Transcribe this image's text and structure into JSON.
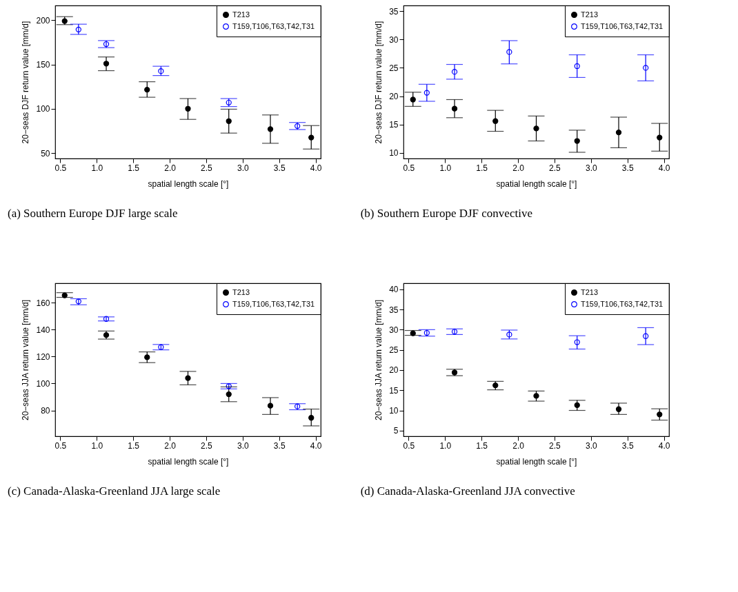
{
  "chart_data": [
    {
      "type": "scatter",
      "ylabel": "20−seas DJF return value [mm/d]",
      "xlabel": "spatial length scale [°]",
      "annotations": [
        "(a) Southern Europe DJF large scale"
      ],
      "xlim": [
        0.43,
        4.07
      ],
      "xticks": [
        0.5,
        {
          "value": 1,
          "label": "1.0"
        },
        1.5,
        {
          "value": 2,
          "label": "2.0"
        },
        2.5,
        {
          "value": 3,
          "label": "3.0"
        },
        3.5,
        {
          "value": 4,
          "label": "4.0"
        }
      ],
      "ylim": [
        43.8,
        216.6
      ],
      "yticks": [
        50,
        100,
        150,
        200
      ],
      "legend": "top right",
      "grid": false,
      "marker": "circle",
      "series": [
        {
          "name": "T213",
          "color": "#000000",
          "x": [
            0.56,
            1.13,
            1.69,
            2.25,
            2.81,
            3.38,
            3.94
          ],
          "values": [
            199,
            151,
            121.5,
            100,
            86,
            77,
            67.5
          ],
          "errors": [
            [
              195,
              204
            ],
            [
              143,
              158.5
            ],
            [
              113,
              130.5
            ],
            [
              88,
              111.5
            ],
            [
              72.5,
              99.5
            ],
            [
              61,
              93
            ],
            [
              54.5,
              81
            ]
          ]
        },
        {
          "name": "T159,T106,T63,T42,T31",
          "color": "#0000ff",
          "x": [
            0.75,
            1.13,
            1.88,
            2.81,
            3.75
          ],
          "values": [
            189.5,
            173,
            142.5,
            107,
            80.5
          ],
          "errors": [
            [
              184,
              195.5
            ],
            [
              169,
              177
            ],
            [
              137.5,
              148
            ],
            [
              102.5,
              111.5
            ],
            [
              76.5,
              84.5
            ]
          ]
        }
      ]
    },
    {
      "type": "scatter",
      "ylabel": "20−seas DJF return value [mm/d]",
      "xlabel": "spatial length scale [°]",
      "annotations": [
        "(b) Southern Europe DJF convective"
      ],
      "xlim": [
        0.43,
        4.07
      ],
      "xticks": [
        0.5,
        {
          "value": 1,
          "label": "1.0"
        },
        1.5,
        {
          "value": 2,
          "label": "2.0"
        },
        2.5,
        {
          "value": 3,
          "label": "3.0"
        },
        3.5,
        {
          "value": 4,
          "label": "4.0"
        }
      ],
      "ylim": [
        9.0,
        36.0
      ],
      "yticks": [
        10,
        15,
        20,
        25,
        30,
        35
      ],
      "legend": "top right",
      "grid": false,
      "marker": "circle",
      "series": [
        {
          "name": "T213",
          "color": "#000000",
          "x": [
            0.56,
            1.13,
            1.69,
            2.25,
            2.81,
            3.38,
            3.94
          ],
          "values": [
            19.4,
            17.8,
            15.6,
            14.3,
            12.1,
            13.6,
            12.7
          ],
          "errors": [
            [
              18.2,
              20.7
            ],
            [
              16.2,
              19.4
            ],
            [
              13.8,
              17.5
            ],
            [
              12.1,
              16.5
            ],
            [
              10.1,
              14.0
            ],
            [
              10.9,
              16.3
            ],
            [
              10.3,
              15.2
            ]
          ]
        },
        {
          "name": "T159,T106,T63,T42,T31",
          "color": "#0000ff",
          "x": [
            0.75,
            1.13,
            1.88,
            2.81,
            3.75
          ],
          "values": [
            20.6,
            24.3,
            27.8,
            25.3,
            25.0
          ],
          "errors": [
            [
              19.1,
              22.1
            ],
            [
              23.0,
              25.6
            ],
            [
              25.7,
              29.8
            ],
            [
              23.3,
              27.3
            ],
            [
              22.7,
              27.3
            ]
          ]
        }
      ]
    },
    {
      "type": "scatter",
      "ylabel": "20−seas JJA return value [mm/d]",
      "xlabel": "spatial length scale [°]",
      "annotations": [
        "(c) Canada-Alaska-Greenland JJA large scale"
      ],
      "xlim": [
        0.43,
        4.07
      ],
      "xticks": [
        0.5,
        {
          "value": 1,
          "label": "1.0"
        },
        1.5,
        {
          "value": 2,
          "label": "2.0"
        },
        2.5,
        {
          "value": 3,
          "label": "3.0"
        },
        3.5,
        {
          "value": 4,
          "label": "4.0"
        }
      ],
      "ylim": [
        60.8,
        174.5
      ],
      "yticks": [
        80,
        100,
        120,
        140,
        160
      ],
      "legend": "top right",
      "grid": false,
      "marker": "circle",
      "series": [
        {
          "name": "T213",
          "color": "#000000",
          "x": [
            0.56,
            1.13,
            1.69,
            2.25,
            2.81,
            3.38,
            3.94
          ],
          "values": [
            165.5,
            136,
            119.5,
            104,
            92,
            83.5,
            74.5
          ],
          "errors": [
            [
              164,
              167.5
            ],
            [
              133,
              139
            ],
            [
              115.5,
              123.5
            ],
            [
              99,
              109
            ],
            [
              86.5,
              97.5
            ],
            [
              77,
              89.5
            ],
            [
              68.5,
              81
            ]
          ]
        },
        {
          "name": "T159,T106,T63,T42,T31",
          "color": "#0000ff",
          "x": [
            0.75,
            1.13,
            1.88,
            2.81,
            3.75
          ],
          "values": [
            161,
            148,
            127,
            98,
            83
          ],
          "errors": [
            [
              158.5,
              163
            ],
            [
              146.5,
              149.5
            ],
            [
              125,
              129
            ],
            [
              96,
              100
            ],
            [
              80.5,
              85
            ]
          ]
        }
      ]
    },
    {
      "type": "scatter",
      "ylabel": "20−seas JJA return value [mm/d]",
      "xlabel": "spatial length scale [°]",
      "annotations": [
        "(d) Canada-Alaska-Greenland JJA convective"
      ],
      "xlim": [
        0.43,
        4.07
      ],
      "xticks": [
        0.5,
        {
          "value": 1,
          "label": "1.0"
        },
        1.5,
        {
          "value": 2,
          "label": "2.0"
        },
        2.5,
        {
          "value": 3,
          "label": "3.0"
        },
        3.5,
        {
          "value": 4,
          "label": "4.0"
        }
      ],
      "ylim": [
        3.6,
        41.5
      ],
      "yticks": [
        5,
        10,
        15,
        20,
        25,
        30,
        35,
        40
      ],
      "legend": "top right",
      "grid": false,
      "marker": "circle",
      "series": [
        {
          "name": "T213",
          "color": "#000000",
          "x": [
            0.56,
            1.13,
            1.69,
            2.25,
            2.81,
            3.38,
            3.94
          ],
          "values": [
            29.1,
            19.4,
            16.2,
            13.6,
            11.3,
            10.3,
            9.0
          ],
          "errors": [
            [
              28.6,
              29.8
            ],
            [
              18.6,
              20.2
            ],
            [
              15.1,
              17.2
            ],
            [
              12.3,
              14.8
            ],
            [
              10.0,
              12.5
            ],
            [
              9.0,
              11.8
            ],
            [
              7.6,
              10.4
            ]
          ]
        },
        {
          "name": "T159,T106,T63,T42,T31",
          "color": "#0000ff",
          "x": [
            0.75,
            1.13,
            1.88,
            2.81,
            3.75
          ],
          "values": [
            29.2,
            29.5,
            28.8,
            26.9,
            28.4
          ],
          "errors": [
            [
              28.4,
              30.0
            ],
            [
              28.8,
              30.2
            ],
            [
              27.7,
              29.9
            ],
            [
              25.2,
              28.5
            ],
            [
              26.3,
              30.5
            ]
          ]
        }
      ]
    }
  ]
}
